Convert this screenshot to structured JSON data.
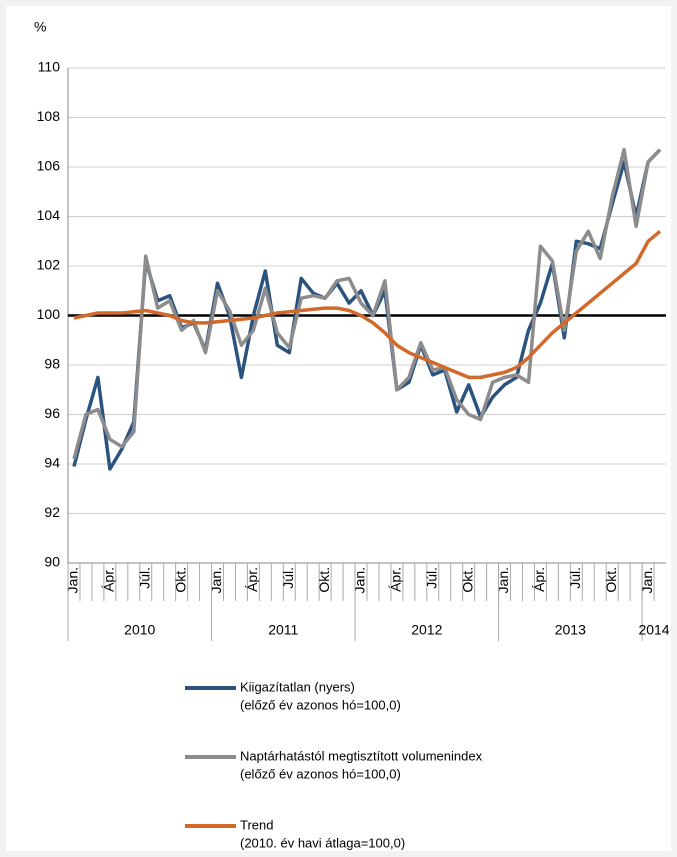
{
  "chart_data": {
    "type": "line",
    "y_unit_label": "%",
    "categories": [
      "Jan.",
      null,
      null,
      "Ápr.",
      null,
      null,
      "Júl.",
      null,
      null,
      "Okt.",
      null,
      null,
      "Jan.",
      null,
      null,
      "Ápr.",
      null,
      null,
      "Júl.",
      null,
      null,
      "Okt.",
      null,
      null,
      "Jan.",
      null,
      null,
      "Ápr.",
      null,
      null,
      "Júl.",
      null,
      null,
      "Okt.",
      null,
      null,
      "Jan.",
      null,
      null,
      "Ápr.",
      null,
      null,
      "Júl.",
      null,
      null,
      "Okt.",
      null,
      null,
      "Jan.",
      null
    ],
    "years": [
      "2010",
      "2011",
      "2012",
      "2013",
      "2014"
    ],
    "ylim": [
      90,
      110
    ],
    "yticks": [
      90,
      92,
      94,
      96,
      98,
      100,
      102,
      104,
      106,
      108,
      110
    ],
    "grid": true,
    "reference_line": 100,
    "series": [
      {
        "name": "Kiigazítatlan (nyers)",
        "description": "(előző év azonos hó=100,0)",
        "color": "#2a5380",
        "values": [
          93.9,
          95.8,
          97.5,
          93.8,
          94.6,
          95.7,
          102.2,
          100.6,
          100.8,
          99.5,
          99.7,
          98.6,
          101.3,
          100.0,
          97.5,
          100.0,
          101.8,
          98.8,
          98.5,
          101.5,
          100.9,
          100.7,
          101.3,
          100.5,
          101.0,
          100.0,
          101.0,
          97.0,
          97.3,
          98.8,
          97.6,
          97.8,
          96.1,
          97.2,
          95.9,
          96.7,
          97.2,
          97.5,
          99.4,
          100.5,
          102.1,
          99.1,
          103.0,
          102.9,
          102.7,
          104.5,
          106.2,
          104.0,
          106.2,
          106.7
        ]
      },
      {
        "name": "Naptárhatástól megtisztított volumenindex",
        "description": "(előző év azonos hó=100,0)",
        "color": "#8c8c8c",
        "values": [
          94.2,
          96.0,
          96.2,
          95.0,
          94.7,
          95.3,
          102.4,
          100.3,
          100.6,
          99.4,
          99.8,
          98.5,
          101.0,
          100.2,
          98.8,
          99.4,
          101.1,
          99.3,
          98.7,
          100.7,
          100.8,
          100.7,
          101.4,
          101.5,
          100.5,
          100.0,
          101.4,
          97.0,
          97.5,
          98.9,
          97.8,
          97.9,
          96.6,
          96.0,
          95.8,
          97.3,
          97.5,
          97.6,
          97.3,
          102.8,
          102.2,
          99.4,
          102.6,
          103.4,
          102.3,
          104.8,
          106.7,
          103.6,
          106.2,
          106.7
        ]
      },
      {
        "name": "Trend",
        "description": "(2010. év havi átlaga=100,0)",
        "color": "#d2692a",
        "values": [
          99.9,
          100.0,
          100.1,
          100.1,
          100.1,
          100.15,
          100.2,
          100.1,
          100.0,
          99.8,
          99.7,
          99.7,
          99.75,
          99.8,
          99.85,
          99.9,
          100.0,
          100.1,
          100.15,
          100.2,
          100.25,
          100.3,
          100.3,
          100.2,
          100.0,
          99.7,
          99.3,
          98.8,
          98.5,
          98.3,
          98.1,
          97.9,
          97.7,
          97.5,
          97.5,
          97.6,
          97.7,
          97.9,
          98.3,
          98.8,
          99.3,
          99.7,
          100.1,
          100.5,
          100.9,
          101.3,
          101.7,
          102.1,
          103.0,
          103.4
        ]
      }
    ]
  }
}
